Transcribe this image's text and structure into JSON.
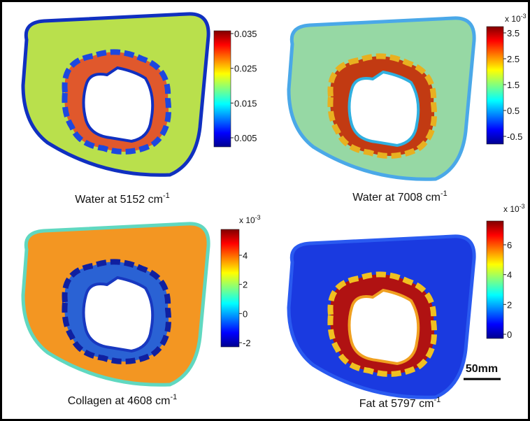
{
  "panels": [
    {
      "caption": {
        "text": "Water at 5152 cm",
        "sup": "-1"
      },
      "colorbar": {
        "ticks": [
          "0.035",
          "0.025",
          "0.015",
          "0.005"
        ]
      }
    },
    {
      "caption": {
        "text": "Water at 7008 cm",
        "sup": "-1"
      },
      "colorbar": {
        "multiplier": {
          "text": "x 10",
          "sup": "-3"
        },
        "ticks": [
          "3.5",
          "2.5",
          "1.5",
          "0.5",
          "-0.5"
        ]
      }
    },
    {
      "caption": {
        "text": "Collagen at 4608 cm",
        "sup": "-1"
      },
      "colorbar": {
        "multiplier": {
          "text": "x 10",
          "sup": "-3"
        },
        "ticks": [
          "4",
          "2",
          "0",
          "-2"
        ]
      }
    },
    {
      "caption": {
        "text": "Fat at 5797 cm",
        "sup": "-1"
      },
      "colorbar": {
        "multiplier": {
          "text": "x 10",
          "sup": "-3"
        },
        "ticks": [
          "6",
          "4",
          "2",
          "0"
        ]
      }
    }
  ],
  "scale_bar": {
    "label": "50mm"
  }
}
